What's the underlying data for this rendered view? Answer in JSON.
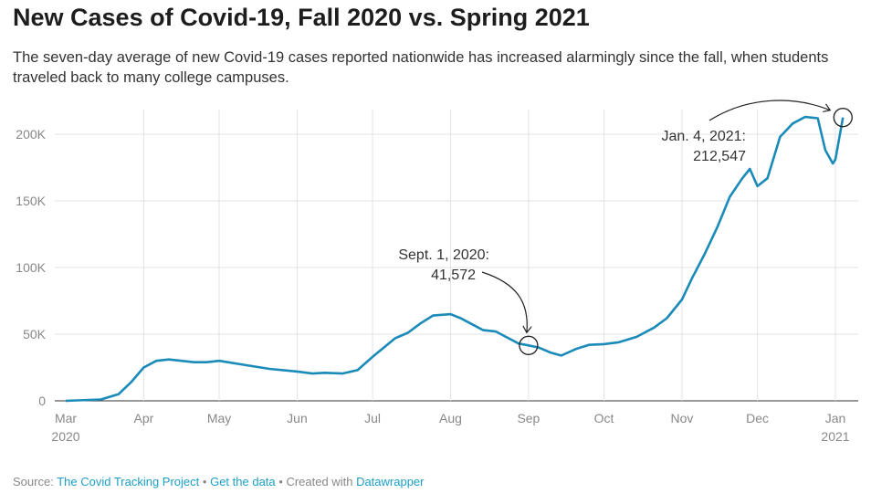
{
  "title": "New Cases of Covid-19, Fall 2020 vs. Spring 2021",
  "subtitle": "The seven-day average of new Covid-19 cases reported nationwide has increased alarmingly since the fall, when students traveled back to many college campuses.",
  "footer": {
    "source_label": "Source:",
    "source_link": "The Covid Tracking Project",
    "sep1": "•",
    "get_data": "Get the data",
    "sep2": "• Created with",
    "tool": "Datawrapper"
  },
  "chart_data": {
    "type": "line",
    "title": "New Cases of Covid-19, Fall 2020 vs. Spring 2021",
    "xlabel": "",
    "ylabel": "",
    "ylim": [
      0,
      220000
    ],
    "y_ticks": [
      {
        "v": 0,
        "label": "0"
      },
      {
        "v": 50000,
        "label": "50K"
      },
      {
        "v": 100000,
        "label": "100K"
      },
      {
        "v": 150000,
        "label": "150K"
      },
      {
        "v": 200000,
        "label": "200K"
      }
    ],
    "x_ticks": [
      {
        "d": 0,
        "label": "Mar",
        "label2": "2020"
      },
      {
        "d": 31,
        "label": "Apr"
      },
      {
        "d": 61,
        "label": "May"
      },
      {
        "d": 92,
        "label": "Jun"
      },
      {
        "d": 122,
        "label": "Jul"
      },
      {
        "d": 153,
        "label": "Aug"
      },
      {
        "d": 184,
        "label": "Sep"
      },
      {
        "d": 214,
        "label": "Oct"
      },
      {
        "d": 245,
        "label": "Nov"
      },
      {
        "d": 275,
        "label": "Dec"
      },
      {
        "d": 306,
        "label": "Jan",
        "label2": "2021"
      }
    ],
    "x_unit": "days since 2020-03-01",
    "color": "#1a8bb9",
    "series": [
      {
        "name": "7-day average new cases",
        "points": [
          [
            0,
            0
          ],
          [
            14,
            1000
          ],
          [
            21,
            5000
          ],
          [
            26,
            14000
          ],
          [
            31,
            25000
          ],
          [
            36,
            30000
          ],
          [
            41,
            31000
          ],
          [
            51,
            29000
          ],
          [
            56,
            29000
          ],
          [
            61,
            30000
          ],
          [
            71,
            27000
          ],
          [
            81,
            24000
          ],
          [
            92,
            22000
          ],
          [
            98,
            20500
          ],
          [
            103,
            21000
          ],
          [
            110,
            20500
          ],
          [
            116,
            23000
          ],
          [
            122,
            33000
          ],
          [
            131,
            47000
          ],
          [
            136,
            51000
          ],
          [
            141,
            58000
          ],
          [
            146,
            64000
          ],
          [
            153,
            65000
          ],
          [
            157,
            62000
          ],
          [
            162,
            57000
          ],
          [
            166,
            53000
          ],
          [
            171,
            52000
          ],
          [
            176,
            47000
          ],
          [
            180,
            43000
          ],
          [
            184,
            41572
          ],
          [
            188,
            40000
          ],
          [
            193,
            36000
          ],
          [
            197,
            34000
          ],
          [
            203,
            39000
          ],
          [
            208,
            42000
          ],
          [
            214,
            42500
          ],
          [
            220,
            44000
          ],
          [
            227,
            48000
          ],
          [
            234,
            55000
          ],
          [
            239,
            62000
          ],
          [
            245,
            76000
          ],
          [
            249,
            92000
          ],
          [
            254,
            110000
          ],
          [
            259,
            130000
          ],
          [
            264,
            153000
          ],
          [
            269,
            167000
          ],
          [
            272,
            174000
          ],
          [
            275,
            161000
          ],
          [
            279,
            167000
          ],
          [
            284,
            198000
          ],
          [
            289,
            208000
          ],
          [
            294,
            213000
          ],
          [
            299,
            212000
          ],
          [
            302,
            188000
          ],
          [
            305,
            178000
          ],
          [
            306,
            181000
          ],
          [
            309,
            212547
          ]
        ]
      }
    ],
    "annotations": [
      {
        "d": 184,
        "v": 41572,
        "label1": "Sept. 1, 2020:",
        "label2": "41,572"
      },
      {
        "d": 309,
        "v": 212547,
        "label1": "Jan. 4, 2021:",
        "label2": "212,547"
      }
    ]
  }
}
